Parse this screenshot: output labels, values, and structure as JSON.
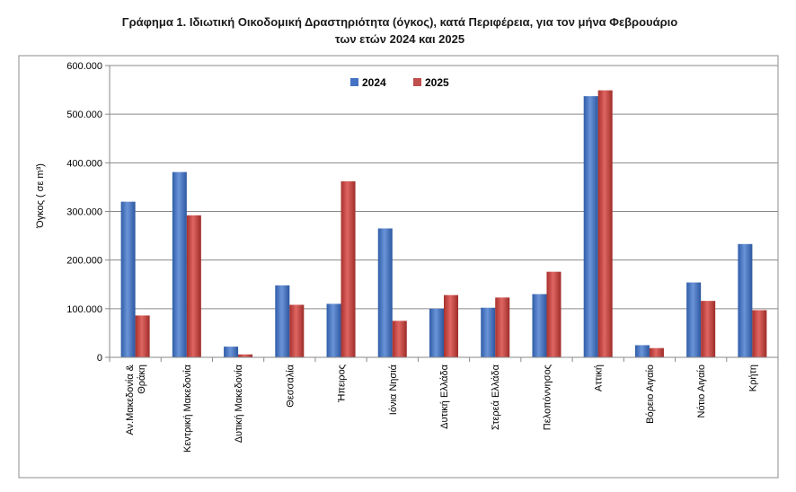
{
  "chart_data": {
    "type": "bar",
    "title_line1": "Γράφημα 1.  Ιδιωτική Οικοδομική Δραστηριότητα (όγκος), κατά Περιφέρεια, για τον μήνα Φεβρουάριο",
    "title_line2": "των ετών 2024 και 2025",
    "ylabel": "Όγκος ( σε m³)",
    "xlabel": "",
    "ylim": [
      0,
      600000
    ],
    "yticks": [
      {
        "value": 0,
        "label": "0"
      },
      {
        "value": 100000,
        "label": "100.000"
      },
      {
        "value": 200000,
        "label": "200.000"
      },
      {
        "value": 300000,
        "label": "300.000"
      },
      {
        "value": 400000,
        "label": "400.000"
      },
      {
        "value": 500000,
        "label": "500.000"
      },
      {
        "value": 600000,
        "label": "600.000"
      }
    ],
    "grid": true,
    "legend_position": "top-center",
    "categories": [
      [
        "Αν.Μακεδονία &",
        "Θράκη"
      ],
      [
        "Κεντρική Μακεδονία"
      ],
      [
        "Δυτική Μακεδονία"
      ],
      [
        "Θεσσαλία"
      ],
      [
        "Ήπειρος"
      ],
      [
        "Ιόνια Νησιά"
      ],
      [
        "Δυτική Ελλάδα"
      ],
      [
        "Στερεά Ελλάδα"
      ],
      [
        "Πελοπόννησος"
      ],
      [
        "Αττική"
      ],
      [
        "Βόρειο Αιγαίο"
      ],
      [
        "Νότιο Αιγαίο"
      ],
      [
        "Κρήτη"
      ]
    ],
    "series": [
      {
        "name": "2024",
        "color": "#4472c4",
        "values": [
          320000,
          381000,
          22000,
          148000,
          110000,
          265000,
          100000,
          102000,
          130000,
          537000,
          25000,
          154000,
          233000
        ]
      },
      {
        "name": "2025",
        "color": "#c0504d",
        "values": [
          86000,
          292000,
          6000,
          108000,
          362000,
          75000,
          128000,
          123000,
          176000,
          549000,
          19000,
          116000,
          97000
        ]
      }
    ]
  }
}
